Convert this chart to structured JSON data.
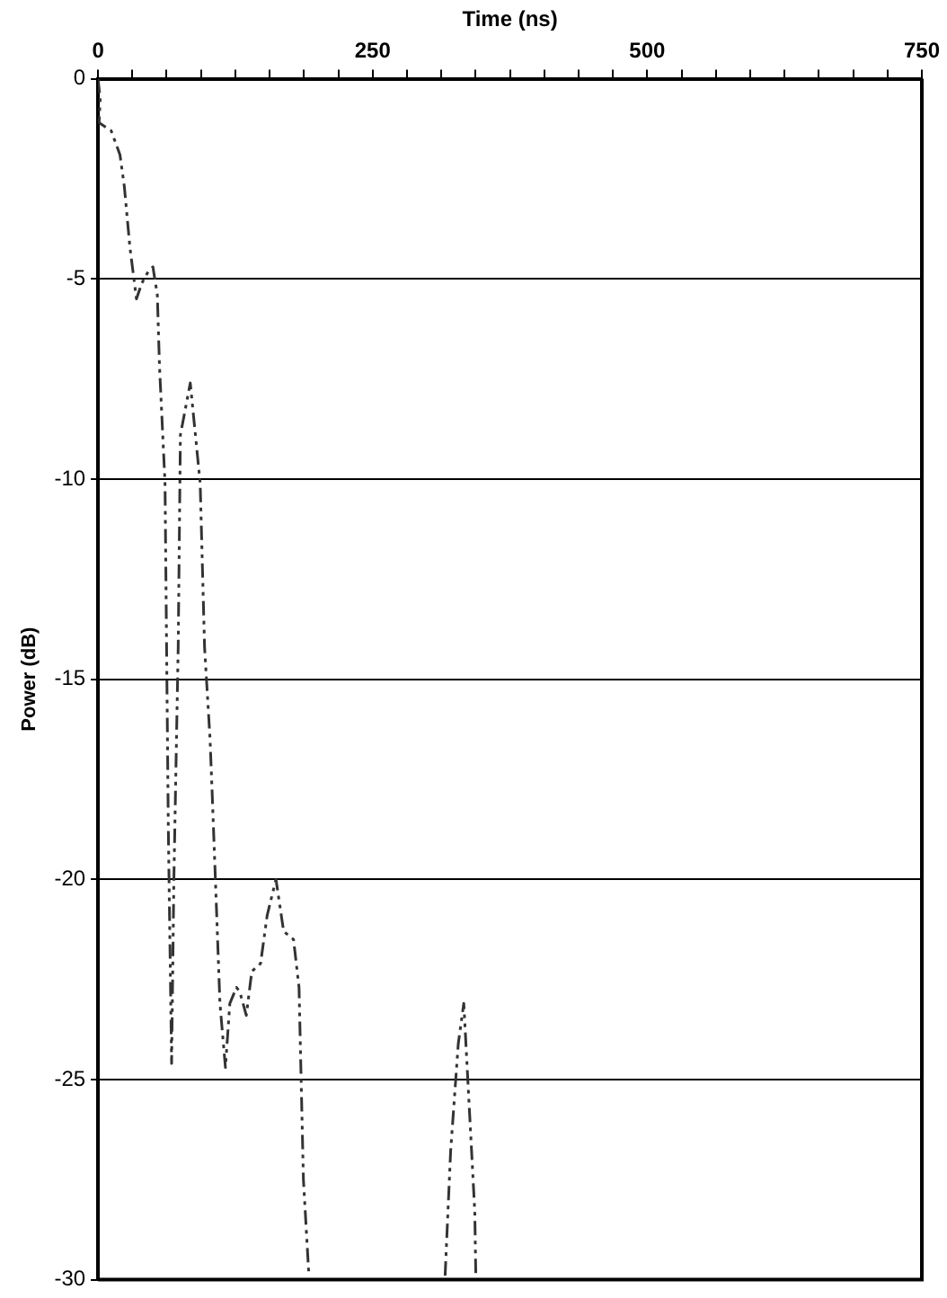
{
  "chart_data": {
    "type": "line",
    "xlabel": "Time (ns)",
    "ylabel": "Power (dB)",
    "x": [
      0,
      2,
      1,
      12,
      20,
      24,
      29,
      35,
      40,
      46,
      50,
      54,
      56,
      61,
      64,
      67,
      69,
      73,
      75,
      84,
      93,
      97,
      102,
      104,
      107,
      111,
      116,
      120,
      126,
      129,
      135,
      140,
      148,
      154,
      162,
      169,
      178,
      183,
      187,
      192,
      250,
      316,
      321,
      328,
      333,
      343,
      344
    ],
    "series": [
      {
        "color": "#333333",
        "values": [
          0,
          -0.5,
          -1.1,
          -1.3,
          -1.9,
          -2.7,
          -4.2,
          -5.5,
          -5.1,
          -4.8,
          -4.7,
          -5.4,
          -7.2,
          -10.1,
          -18.7,
          -24.6,
          -20.1,
          -14.2,
          -8.9,
          -7.6,
          -10.1,
          -14.2,
          -16.5,
          -17.9,
          -20.1,
          -23.1,
          -24.7,
          -23.1,
          -22.7,
          -22.8,
          -23.4,
          -22.3,
          -22.1,
          -20.9,
          -20,
          -21.3,
          -21.5,
          -22.7,
          -27.5,
          -29.9,
          null,
          -29.9,
          -26.8,
          -24.1,
          -23.1,
          -28.3,
          -30
        ]
      }
    ],
    "xlim": [
      0,
      750
    ],
    "xticks": [
      0,
      {
        "value": 31.25,
        "label": null
      },
      {
        "value": 62.5,
        "label": null
      },
      {
        "value": 93.75,
        "label": null
      },
      {
        "value": 125,
        "label": null
      },
      {
        "value": 156.25,
        "label": null
      },
      {
        "value": 187.5,
        "label": null
      },
      {
        "value": 218.75,
        "label": null
      },
      250,
      {
        "value": 281.25,
        "label": null
      },
      {
        "value": 312.5,
        "label": null
      },
      {
        "value": 343.75,
        "label": null
      },
      {
        "value": 375,
        "label": null
      },
      {
        "value": 406.25,
        "label": null
      },
      {
        "value": 437.5,
        "label": null
      },
      {
        "value": 468.75,
        "label": null
      },
      500,
      {
        "value": 531.25,
        "label": null
      },
      {
        "value": 562.5,
        "label": null
      },
      {
        "value": 593.75,
        "label": null
      },
      {
        "value": 625,
        "label": null
      },
      {
        "value": 656.25,
        "label": null
      },
      {
        "value": 687.5,
        "label": null
      },
      {
        "value": 718.75,
        "label": null
      },
      750
    ],
    "ylim": [
      -30,
      0
    ],
    "yticks": [
      -30,
      -25,
      -20,
      -15,
      -10,
      -5,
      0
    ],
    "grid": "y",
    "legend": false,
    "marker": "none",
    "line_style": "dashed"
  }
}
